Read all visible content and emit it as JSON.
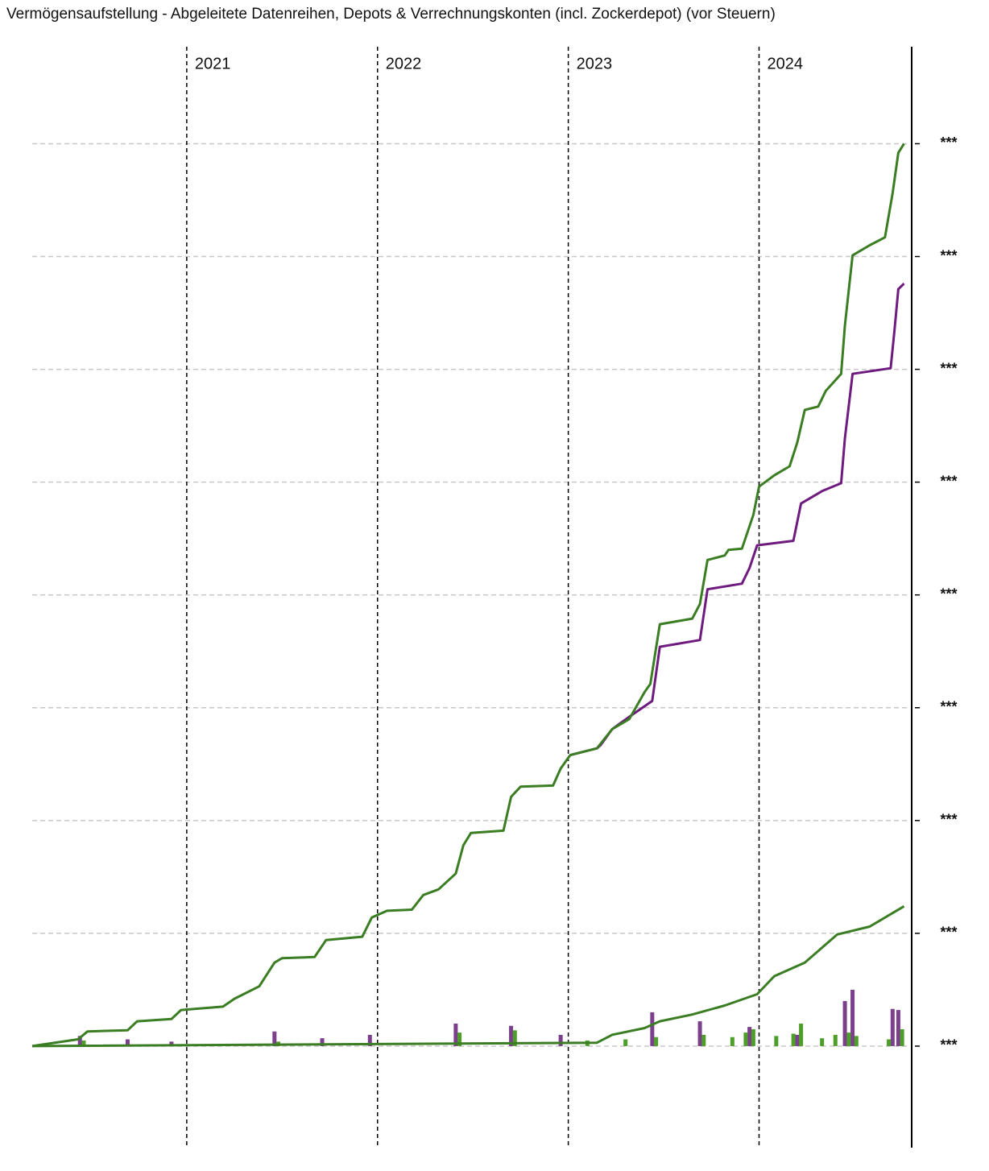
{
  "chart_data": {
    "type": "line",
    "title": "Vermögensaufstellung - Abgeleitete Datenreihen, Depots & Verrechnungskonten (incl. Zockerdepot) (vor Steuern)",
    "xlim": [
      2020.19,
      2024.8
    ],
    "xticks": [
      2021,
      2022,
      2023,
      2024
    ],
    "ylim": [
      -0.9,
      8.86
    ],
    "yticks": [
      {
        "value": 0,
        "label": "***"
      },
      {
        "value": 1,
        "label": "***"
      },
      {
        "value": 2,
        "label": "***"
      },
      {
        "value": 3,
        "label": "***"
      },
      {
        "value": 4,
        "label": "***"
      },
      {
        "value": 5,
        "label": "***"
      },
      {
        "value": 6,
        "label": "***"
      },
      {
        "value": 7,
        "label": "***"
      },
      {
        "value": 8,
        "label": "***"
      }
    ],
    "grid": true,
    "series": [
      {
        "type": "bar",
        "color": "#7b3f8c",
        "x": [
          2020.44,
          2020.69,
          2020.92,
          2021.46,
          2021.71,
          2021.96,
          2022.41,
          2022.7,
          2022.96,
          2023.44,
          2023.69,
          2023.95,
          2024.2,
          2024.45,
          2024.49,
          2024.7,
          2024.73
        ],
        "values": [
          0.09,
          0.06,
          0.04,
          0.13,
          0.07,
          0.1,
          0.2,
          0.18,
          0.1,
          0.3,
          0.22,
          0.17,
          0.1,
          0.4,
          0.5,
          0.33,
          0.32
        ]
      },
      {
        "type": "bar",
        "color": "#4e9e2a",
        "x": [
          2020.46,
          2021.48,
          2022.43,
          2022.72,
          2023.1,
          2023.3,
          2023.46,
          2023.71,
          2023.86,
          2023.93,
          2023.97,
          2024.09,
          2024.18,
          2024.22,
          2024.33,
          2024.4,
          2024.47,
          2024.51,
          2024.68,
          2024.75
        ],
        "values": [
          0.05,
          0.04,
          0.12,
          0.14,
          0.05,
          0.06,
          0.08,
          0.1,
          0.08,
          0.12,
          0.15,
          0.09,
          0.11,
          0.2,
          0.07,
          0.1,
          0.12,
          0.09,
          0.06,
          0.15
        ]
      },
      {
        "type": "line",
        "color": "#3a7d22",
        "x": [
          2020.19,
          2023.15,
          2023.23,
          2023.4,
          2023.48,
          2023.65,
          2023.82,
          2023.99,
          2024.08,
          2024.24,
          2024.41,
          2024.58,
          2024.76
        ],
        "values": [
          0,
          0.03,
          0.1,
          0.16,
          0.22,
          0.28,
          0.36,
          0.46,
          0.62,
          0.74,
          0.99,
          1.06,
          1.24
        ]
      },
      {
        "type": "line",
        "color": "#6e1a7e",
        "x": [
          2023.01,
          2023.15,
          2023.17,
          2023.23,
          2023.32,
          2023.44,
          2023.48,
          2023.69,
          2023.73,
          2023.91,
          2023.95,
          2023.99,
          2024.18,
          2024.22,
          2024.33,
          2024.43,
          2024.45,
          2024.49,
          2024.69,
          2024.71,
          2024.73,
          2024.76
        ],
        "values": [
          2.58,
          2.64,
          2.67,
          2.81,
          2.92,
          3.06,
          3.54,
          3.6,
          4.05,
          4.1,
          4.24,
          4.44,
          4.48,
          4.81,
          4.92,
          4.99,
          5.39,
          5.96,
          6.01,
          6.35,
          6.71,
          6.76
        ]
      },
      {
        "type": "line",
        "color": "#3a7d22",
        "x": [
          2020.19,
          2020.43,
          2020.48,
          2020.69,
          2020.74,
          2020.92,
          2020.97,
          2021.19,
          2021.25,
          2021.38,
          2021.46,
          2021.5,
          2021.67,
          2021.73,
          2021.92,
          2021.97,
          2022.05,
          2022.18,
          2022.24,
          2022.32,
          2022.41,
          2022.45,
          2022.49,
          2022.66,
          2022.7,
          2022.75,
          2022.92,
          2022.96,
          2023.01,
          2023.15,
          2023.23,
          2023.32,
          2023.4,
          2023.43,
          2023.48,
          2023.65,
          2023.69,
          2023.73,
          2023.82,
          2023.84,
          2023.91,
          2023.97,
          2024.0,
          2024.08,
          2024.16,
          2024.2,
          2024.24,
          2024.31,
          2024.35,
          2024.43,
          2024.45,
          2024.49,
          2024.58,
          2024.66,
          2024.7,
          2024.73,
          2024.76
        ],
        "values": [
          0,
          0.06,
          0.13,
          0.14,
          0.22,
          0.24,
          0.32,
          0.35,
          0.42,
          0.53,
          0.74,
          0.78,
          0.79,
          0.94,
          0.97,
          1.14,
          1.2,
          1.21,
          1.34,
          1.39,
          1.53,
          1.78,
          1.89,
          1.91,
          2.21,
          2.3,
          2.31,
          2.46,
          2.58,
          2.64,
          2.81,
          2.9,
          3.14,
          3.21,
          3.74,
          3.79,
          3.92,
          4.31,
          4.35,
          4.4,
          4.41,
          4.71,
          4.96,
          5.06,
          5.14,
          5.35,
          5.64,
          5.67,
          5.81,
          5.96,
          6.39,
          7.01,
          7.1,
          7.17,
          7.56,
          7.92,
          8.0
        ]
      }
    ]
  }
}
